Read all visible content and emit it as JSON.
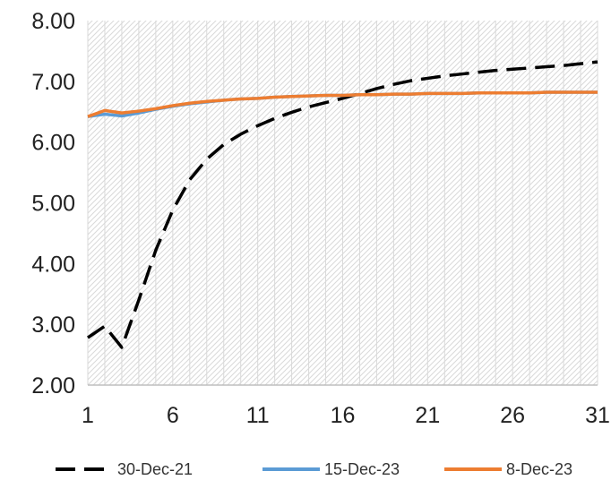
{
  "chart_data": {
    "type": "line",
    "title": "",
    "xlabel": "",
    "ylabel": "",
    "x": [
      1,
      2,
      3,
      4,
      5,
      6,
      7,
      8,
      9,
      10,
      11,
      12,
      13,
      14,
      15,
      16,
      17,
      18,
      19,
      20,
      21,
      22,
      23,
      24,
      25,
      26,
      27,
      28,
      29,
      30,
      31
    ],
    "xticks": [
      1,
      6,
      11,
      16,
      21,
      26,
      31
    ],
    "xtick_labels": [
      "1",
      "6",
      "11",
      "16",
      "21",
      "26",
      "31"
    ],
    "ylim": [
      2.0,
      8.0
    ],
    "yticks": [
      2.0,
      3.0,
      4.0,
      5.0,
      6.0,
      7.0,
      8.0
    ],
    "ytick_labels": [
      "2.00",
      "3.00",
      "4.00",
      "5.00",
      "6.00",
      "7.00",
      "8.00"
    ],
    "grid": "vertical gridlines",
    "plot_background": "diagonal hatch",
    "legend_position": "bottom",
    "series": [
      {
        "name": "30-Dec-21",
        "color": "#000000",
        "style": "dashed",
        "values": [
          2.78,
          2.97,
          2.62,
          3.4,
          4.22,
          4.88,
          5.38,
          5.72,
          5.96,
          6.13,
          6.27,
          6.39,
          6.49,
          6.58,
          6.65,
          6.72,
          6.8,
          6.88,
          6.95,
          7.01,
          7.05,
          7.09,
          7.12,
          7.15,
          7.18,
          7.2,
          7.22,
          7.24,
          7.26,
          7.29,
          7.32
        ]
      },
      {
        "name": "15-Dec-23",
        "color": "#5B9BD5",
        "style": "solid",
        "values": [
          6.42,
          6.46,
          6.43,
          6.48,
          6.54,
          6.59,
          6.63,
          6.66,
          6.69,
          6.71,
          6.72,
          6.74,
          6.75,
          6.76,
          6.77,
          6.77,
          6.78,
          6.78,
          6.79,
          6.79,
          6.8,
          6.8,
          6.8,
          6.81,
          6.81,
          6.81,
          6.81,
          6.82,
          6.82,
          6.82,
          6.82
        ]
      },
      {
        "name": "8-Dec-23",
        "color": "#ED7D31",
        "style": "solid",
        "values": [
          6.42,
          6.52,
          6.48,
          6.51,
          6.55,
          6.6,
          6.64,
          6.67,
          6.69,
          6.71,
          6.72,
          6.74,
          6.75,
          6.76,
          6.77,
          6.77,
          6.78,
          6.78,
          6.79,
          6.79,
          6.8,
          6.8,
          6.8,
          6.81,
          6.81,
          6.81,
          6.81,
          6.82,
          6.82,
          6.82,
          6.82
        ]
      }
    ]
  }
}
